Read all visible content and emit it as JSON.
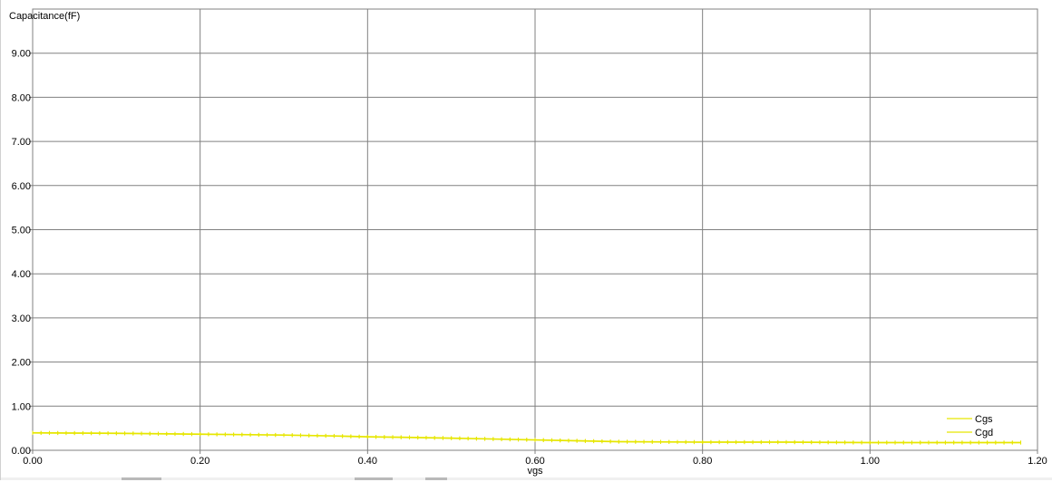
{
  "chart_data": {
    "type": "line",
    "ylabel": "Capacitance(fF)",
    "xlabel": "vgs",
    "xlim": [
      0.0,
      1.2
    ],
    "ylim": [
      0.0,
      10.0
    ],
    "x_ticks": [
      "0.00",
      "0.20",
      "0.40",
      "0.60",
      "0.80",
      "1.00",
      "1.20"
    ],
    "y_ticks": [
      "0.00",
      "1.00",
      "2.00",
      "3.00",
      "4.00",
      "5.00",
      "6.00",
      "7.00",
      "8.00",
      "9.00"
    ],
    "grid": true,
    "legend_position": "bottom-right",
    "series": [
      {
        "name": "Cgs",
        "color": "#e6e600",
        "x": [
          0.0,
          0.1,
          0.2,
          0.3,
          0.36,
          0.4,
          0.44,
          0.5,
          0.55,
          0.6,
          0.65,
          0.7,
          0.8,
          0.9,
          1.0,
          1.1,
          1.18
        ],
        "y": [
          0.4,
          0.39,
          0.37,
          0.35,
          0.33,
          0.31,
          0.3,
          0.28,
          0.26,
          0.24,
          0.22,
          0.2,
          0.19,
          0.19,
          0.18,
          0.18,
          0.18
        ]
      },
      {
        "name": "Cgd",
        "color": "#e6e600",
        "x": [
          0.0,
          0.1,
          0.2,
          0.3,
          0.36,
          0.4,
          0.44,
          0.5,
          0.55,
          0.6,
          0.65,
          0.7,
          0.8,
          0.9,
          1.0,
          1.1,
          1.18
        ],
        "y": [
          0.39,
          0.38,
          0.36,
          0.34,
          0.32,
          0.3,
          0.29,
          0.27,
          0.25,
          0.23,
          0.21,
          0.19,
          0.18,
          0.18,
          0.17,
          0.17,
          0.17
        ]
      }
    ]
  }
}
